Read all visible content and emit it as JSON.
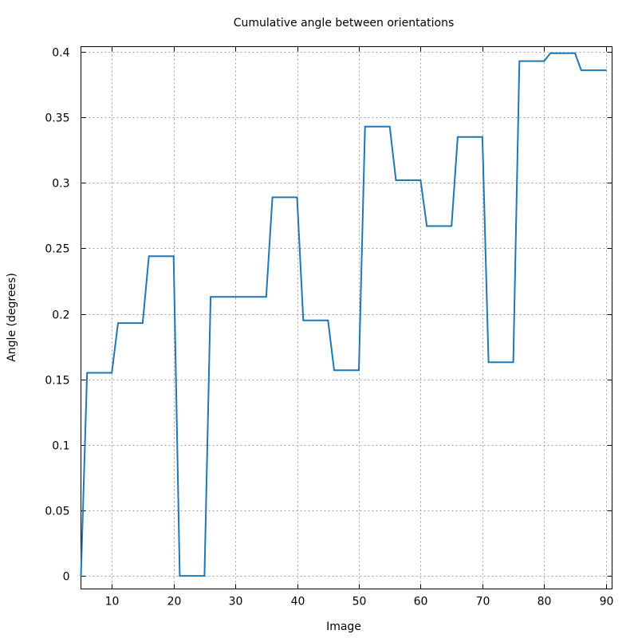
{
  "chart_data": {
    "type": "line",
    "title": "Cumulative angle between orientations",
    "xlabel": "Image",
    "ylabel": "Angle (degrees)",
    "xlim": [
      5,
      91
    ],
    "ylim": [
      -0.01,
      0.404
    ],
    "grid": true,
    "x_ticks": [
      10,
      20,
      30,
      40,
      50,
      60,
      70,
      80,
      90
    ],
    "y_ticks": [
      0,
      0.05,
      0.1,
      0.15,
      0.2,
      0.25,
      0.3,
      0.35,
      0.4
    ],
    "x_tick_labels": [
      "10",
      "20",
      "30",
      "40",
      "50",
      "60",
      "70",
      "80",
      "90"
    ],
    "y_tick_labels": [
      "0",
      "0.05",
      "0.1",
      "0.15",
      "0.2",
      "0.25",
      "0.3",
      "0.35",
      "0.4"
    ],
    "series": [
      {
        "color": "#1f77b4",
        "x": [
          5,
          6,
          10,
          11,
          15,
          16,
          20,
          21,
          25,
          26,
          35,
          36,
          40,
          41,
          45,
          46,
          50,
          51,
          55,
          56,
          60,
          61,
          65,
          66,
          70,
          71,
          75,
          76,
          80,
          81,
          85,
          86,
          90
        ],
        "y": [
          0.0,
          0.155,
          0.155,
          0.193,
          0.193,
          0.244,
          0.244,
          0.0,
          0.0,
          0.213,
          0.213,
          0.289,
          0.289,
          0.195,
          0.195,
          0.157,
          0.157,
          0.343,
          0.343,
          0.302,
          0.302,
          0.267,
          0.267,
          0.335,
          0.335,
          0.163,
          0.163,
          0.393,
          0.393,
          0.399,
          0.399,
          0.386,
          0.386
        ]
      }
    ]
  }
}
